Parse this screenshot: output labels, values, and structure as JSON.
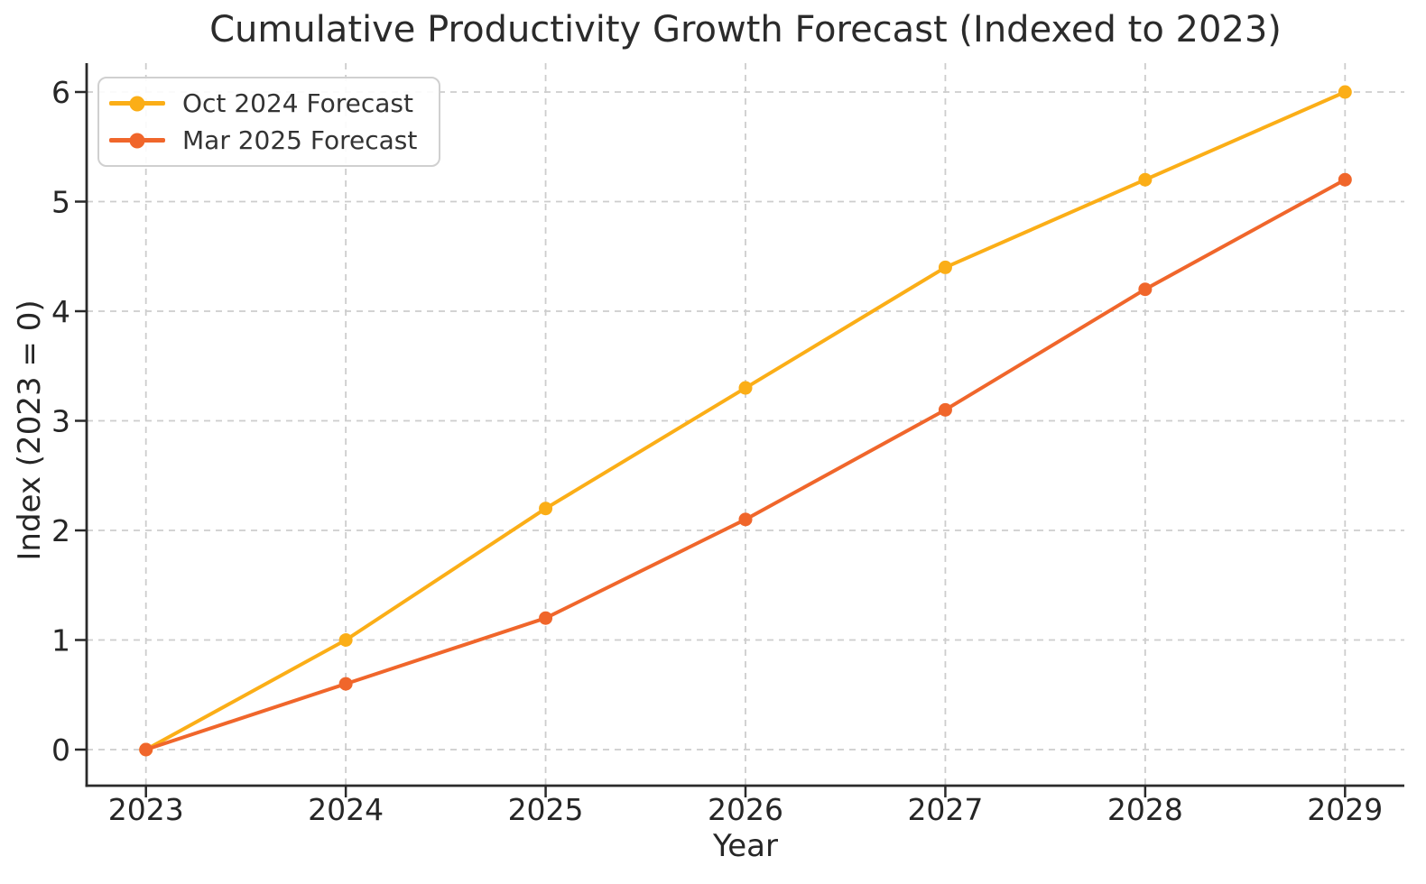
{
  "title": "Cumulative Productivity Growth Forecast (Indexed to 2023)",
  "chart_data": {
    "type": "line",
    "title": "Cumulative Productivity Growth Forecast (Indexed to 2023)",
    "xlabel": "Year",
    "ylabel": "Index (2023 = 0)",
    "x": [
      2023,
      2024,
      2025,
      2026,
      2027,
      2028,
      2029
    ],
    "series": [
      {
        "name": "Oct 2024 Forecast",
        "color": "#FBAE17",
        "values": [
          0,
          1.0,
          2.2,
          3.3,
          4.4,
          5.2,
          6.0
        ]
      },
      {
        "name": "Mar 2025 Forecast",
        "color": "#F0662B",
        "values": [
          0,
          0.6,
          1.2,
          2.1,
          3.1,
          4.2,
          5.2
        ]
      }
    ],
    "ylim": [
      0,
      6
    ],
    "yticks": [
      0,
      1,
      2,
      3,
      4,
      5,
      6
    ],
    "grid": true,
    "grid_style": "dashed",
    "legend_position": "upper left"
  },
  "colors": {
    "background": "#ffffff",
    "grid": "#cdcdcd",
    "spine": "#2a2a2a",
    "tick_text": "#262626",
    "title_text": "#2b2b2b",
    "legend_border": "#d0d0d0",
    "legend_text": "#333333"
  }
}
